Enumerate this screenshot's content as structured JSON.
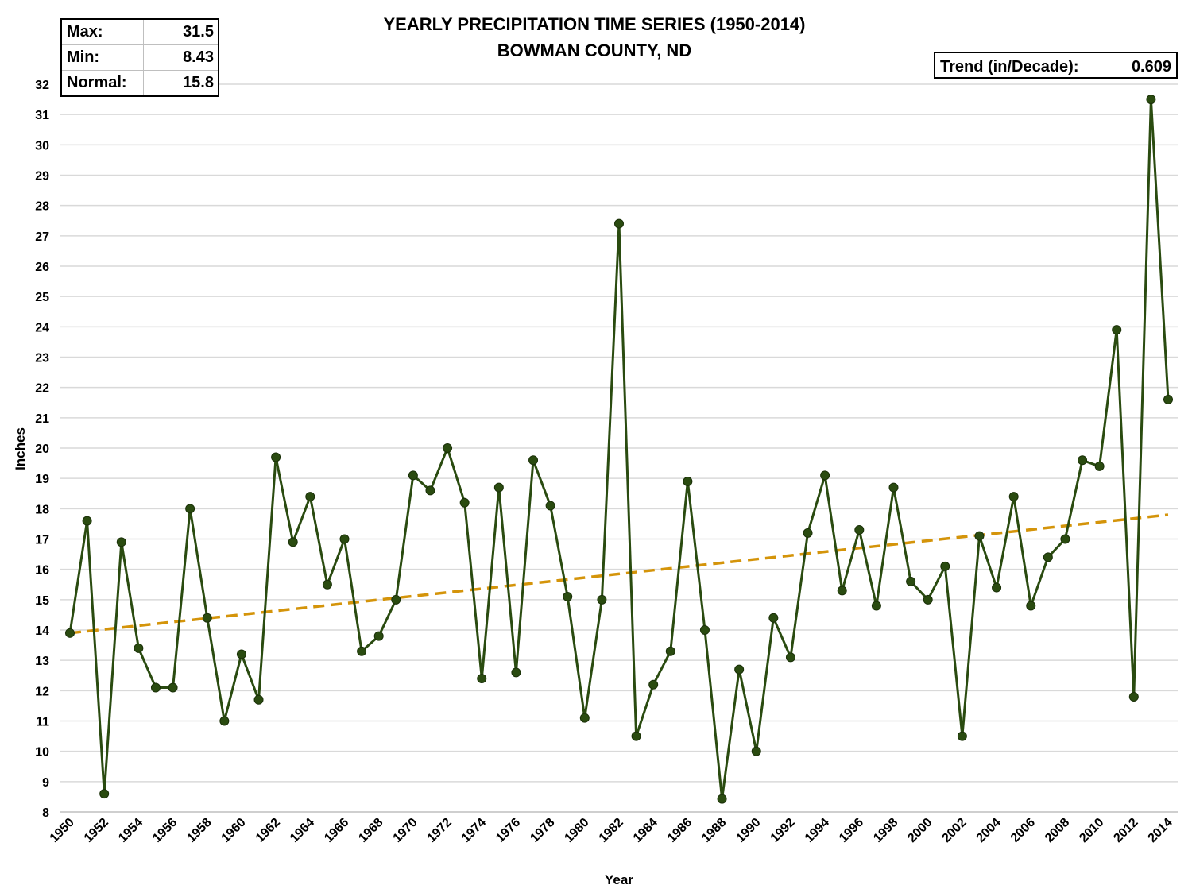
{
  "chart_data": {
    "type": "line",
    "title": "YEARLY PRECIPITATION TIME SERIES (1950-2014)",
    "subtitle": "BOWMAN COUNTY, ND",
    "xlabel": "Year",
    "ylabel": "Inches",
    "ylim": [
      8,
      32
    ],
    "xlim": [
      1950,
      2014
    ],
    "grid": "horizontal",
    "x_tick_labels": [
      "1950",
      "1952",
      "1954",
      "1956",
      "1958",
      "1960",
      "1962",
      "1964",
      "1966",
      "1968",
      "1970",
      "1972",
      "1974",
      "1976",
      "1978",
      "1980",
      "1982",
      "1984",
      "1986",
      "1988",
      "1990",
      "1992",
      "1994",
      "1996",
      "1998",
      "2000",
      "2002",
      "2004",
      "2006",
      "2008",
      "2010",
      "2012",
      "2014"
    ],
    "y_ticks": [
      8,
      9,
      10,
      11,
      12,
      13,
      14,
      15,
      16,
      17,
      18,
      19,
      20,
      21,
      22,
      23,
      24,
      25,
      26,
      27,
      28,
      29,
      30,
      31,
      32
    ],
    "series": [
      {
        "name": "Yearly Precipitation",
        "color": "#2a4b10",
        "x": [
          1950,
          1951,
          1952,
          1953,
          1954,
          1955,
          1956,
          1957,
          1958,
          1959,
          1960,
          1961,
          1962,
          1963,
          1964,
          1965,
          1966,
          1967,
          1968,
          1969,
          1970,
          1971,
          1972,
          1973,
          1974,
          1975,
          1976,
          1977,
          1978,
          1979,
          1980,
          1981,
          1982,
          1983,
          1984,
          1985,
          1986,
          1987,
          1988,
          1989,
          1990,
          1991,
          1992,
          1993,
          1994,
          1995,
          1996,
          1997,
          1998,
          1999,
          2000,
          2001,
          2002,
          2003,
          2004,
          2005,
          2006,
          2007,
          2008,
          2009,
          2010,
          2011,
          2012,
          2013,
          2014
        ],
        "values": [
          13.9,
          17.6,
          8.6,
          16.9,
          13.4,
          12.1,
          12.1,
          18.0,
          14.4,
          11.0,
          13.2,
          11.7,
          19.7,
          16.9,
          18.4,
          15.5,
          17.0,
          13.3,
          13.8,
          15.0,
          19.1,
          18.6,
          20.0,
          18.2,
          12.4,
          18.7,
          12.6,
          19.6,
          18.1,
          15.1,
          11.1,
          15.0,
          27.4,
          10.5,
          12.2,
          13.3,
          18.9,
          14.0,
          8.43,
          12.7,
          10.0,
          14.4,
          13.1,
          17.2,
          19.1,
          15.3,
          17.3,
          14.8,
          18.7,
          15.6,
          15.0,
          16.1,
          10.5,
          17.1,
          15.4,
          18.4,
          14.8,
          16.4,
          17.0,
          19.6,
          19.4,
          23.9,
          11.8,
          31.5,
          21.6
        ]
      },
      {
        "name": "Trend",
        "style": "dashed",
        "color": "#d4940a",
        "x": [
          1950,
          2014
        ],
        "values": [
          13.9,
          17.8
        ]
      }
    ]
  },
  "stats": {
    "max_label": "Max:",
    "max_value": "31.5",
    "min_label": "Min:",
    "min_value": "8.43",
    "normal_label": "Normal:",
    "normal_value": "15.8"
  },
  "trend": {
    "label": "Trend (in/Decade):",
    "value": "0.609"
  }
}
